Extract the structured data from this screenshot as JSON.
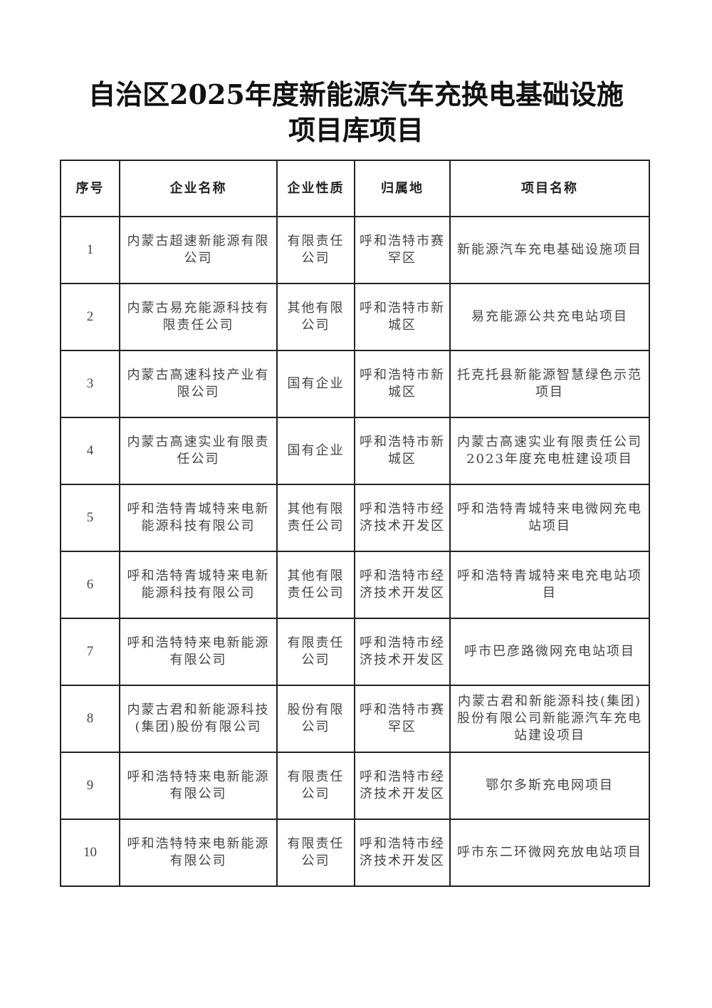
{
  "title": {
    "line1": "自治区2025年度新能源汽车充换电基础设施",
    "line2": "项目库项目"
  },
  "table": {
    "headers": [
      "序号",
      "企业名称",
      "企业性质",
      "归属地",
      "项目名称"
    ],
    "rows": [
      [
        "1",
        "内蒙古超速新能源有限公司",
        "有限责任公司",
        "呼和浩特市赛罕区",
        "新能源汽车充电基础设施项目"
      ],
      [
        "2",
        "内蒙古易充能源科技有限责任公司",
        "其他有限公司",
        "呼和浩特市新城区",
        "易充能源公共充电站项目"
      ],
      [
        "3",
        "内蒙古高速科技产业有限公司",
        "国有企业",
        "呼和浩特市新城区",
        "托克托县新能源智慧绿色示范项目"
      ],
      [
        "4",
        "内蒙古高速实业有限责任公司",
        "国有企业",
        "呼和浩特市新城区",
        "内蒙古高速实业有限责任公司2023年度充电桩建设项目"
      ],
      [
        "5",
        "呼和浩特青城特来电新能源科技有限公司",
        "其他有限责任公司",
        "呼和浩特市经济技术开发区",
        "呼和浩特青城特来电微网充电站项目"
      ],
      [
        "6",
        "呼和浩特青城特来电新能源科技有限公司",
        "其他有限责任公司",
        "呼和浩特市经济技术开发区",
        "呼和浩特青城特来电充电站项目"
      ],
      [
        "7",
        "呼和浩特特来电新能源有限公司",
        "有限责任公司",
        "呼和浩特市经济技术开发区",
        "呼市巴彦路微网充电站项目"
      ],
      [
        "8",
        "内蒙古君和新能源科技(集团)股份有限公司",
        "股份有限公司",
        "呼和浩特市赛罕区",
        "内蒙古君和新能源科技(集团)股份有限公司新能源汽车充电站建设项目"
      ],
      [
        "9",
        "呼和浩特特来电新能源有限公司",
        "有限责任公司",
        "呼和浩特市经济技术开发区",
        "鄂尔多斯充电网项目"
      ],
      [
        "10",
        "呼和浩特特来电新能源有限公司",
        "有限责任公司",
        "呼和浩特市经济技术开发区",
        "呼市东二环微网充放电站项目"
      ]
    ]
  }
}
